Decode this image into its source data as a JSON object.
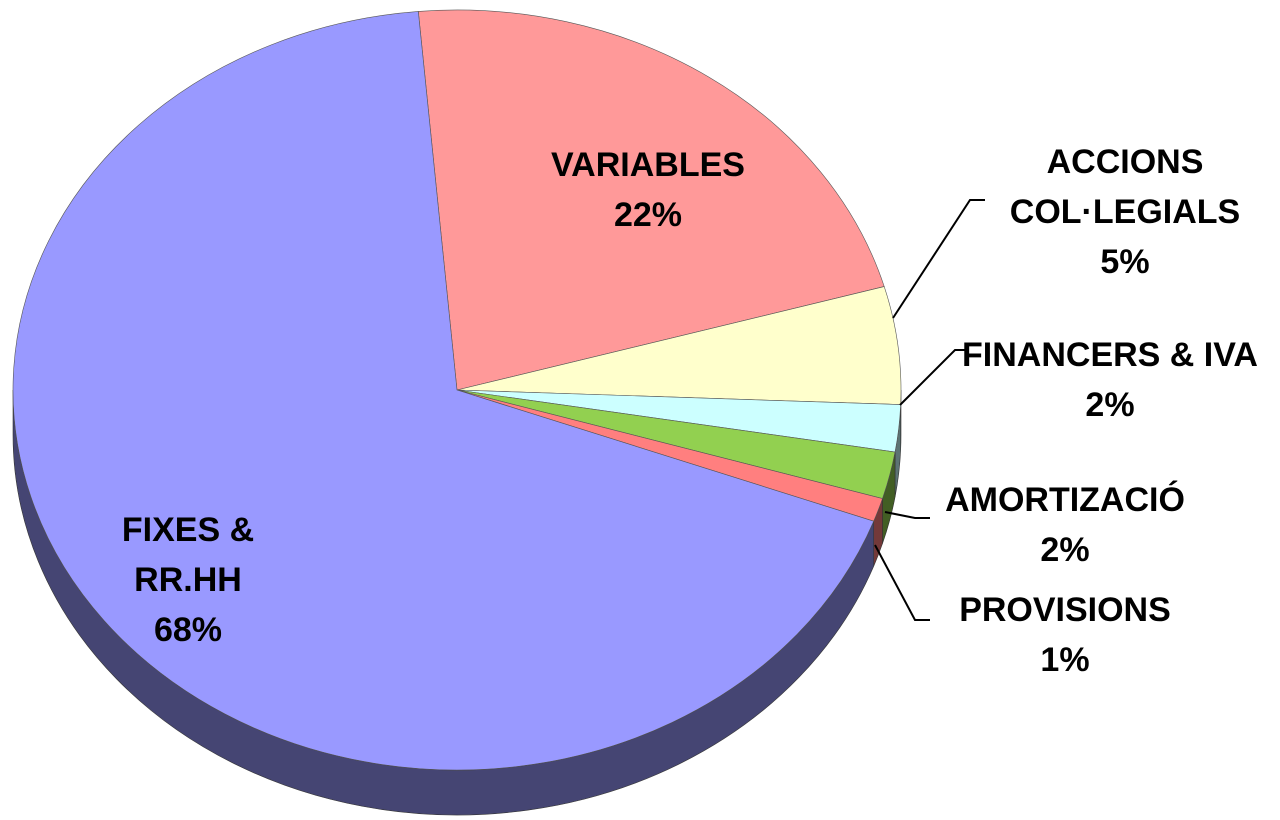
{
  "chart_data": {
    "type": "pie",
    "categories": [
      "VARIABLES",
      "ACCIONS COL·LEGIALS",
      "FINANCERS & IVA",
      "AMORTIZACIÓ",
      "PROVISIONS",
      "FIXES & RR.HH"
    ],
    "values": [
      22,
      5,
      2,
      2,
      1,
      68
    ],
    "value_labels": [
      "22%",
      "5%",
      "2%",
      "2%",
      "1%",
      "68%"
    ],
    "colors": [
      "#ff9999",
      "#ffffcc",
      "#ccffff",
      "#92d050",
      "#ff7f7f",
      "#9999ff"
    ]
  }
}
